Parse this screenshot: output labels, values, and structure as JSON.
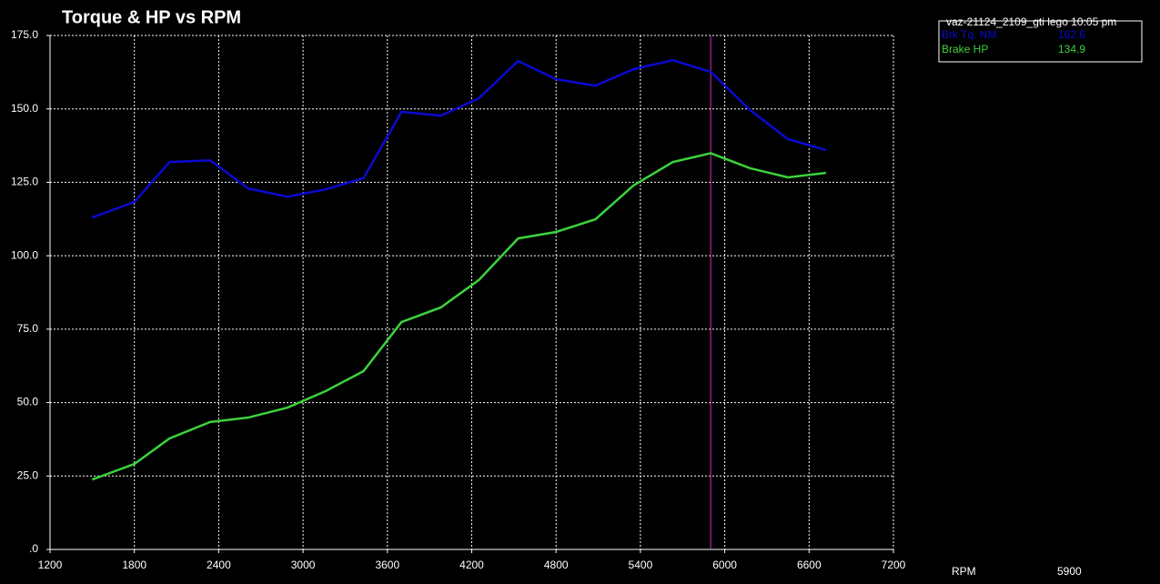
{
  "chart_data": {
    "type": "line",
    "title": "Torque & HP vs RPM",
    "x_label": "RPM",
    "x": [
      1500,
      1800,
      2050,
      2340,
      2610,
      2890,
      3160,
      3430,
      3700,
      3980,
      4250,
      4530,
      4800,
      5080,
      5350,
      5630,
      5900,
      6180,
      6450,
      6720
    ],
    "series": [
      {
        "name": "Brk Tq. NM",
        "color": "#0a0ad2",
        "values": [
          113.0,
          118.3,
          131.9,
          132.5,
          122.9,
          120.1,
          122.6,
          126.4,
          149.0,
          147.7,
          153.6,
          166.3,
          160.1,
          157.9,
          163.5,
          166.6,
          162.6,
          149.6,
          139.7,
          136.0
        ]
      },
      {
        "name": "Brake HP",
        "color": "#3cd23c",
        "values": [
          23.8,
          29.1,
          37.8,
          43.4,
          44.9,
          48.3,
          53.9,
          60.7,
          77.4,
          82.4,
          91.7,
          105.9,
          108.1,
          112.4,
          123.9,
          131.9,
          134.9,
          129.8,
          126.7,
          128.2
        ]
      }
    ],
    "legend_title": "vaz-21124_2109_gti  lego 10:05 pm",
    "cursor": {
      "x": 5900,
      "color": "#c832c8",
      "values": [
        162.6,
        134.9
      ]
    },
    "xlim": [
      1200,
      7200
    ],
    "xticks": [
      1200,
      1800,
      2400,
      3000,
      3600,
      4200,
      4800,
      5400,
      6000,
      6600,
      7200
    ],
    "ylim": [
      0,
      175
    ],
    "yticks": [
      {
        "value": 0,
        "label": ".0"
      },
      {
        "value": 25,
        "label": "25.0"
      },
      {
        "value": 50,
        "label": "50.0"
      },
      {
        "value": 75,
        "label": "75.0"
      },
      {
        "value": 100,
        "label": "100.0"
      },
      {
        "value": 125,
        "label": "125.0"
      },
      {
        "value": 150,
        "label": "150.0"
      },
      {
        "value": 175,
        "label": "175.0"
      }
    ],
    "grid": true
  }
}
